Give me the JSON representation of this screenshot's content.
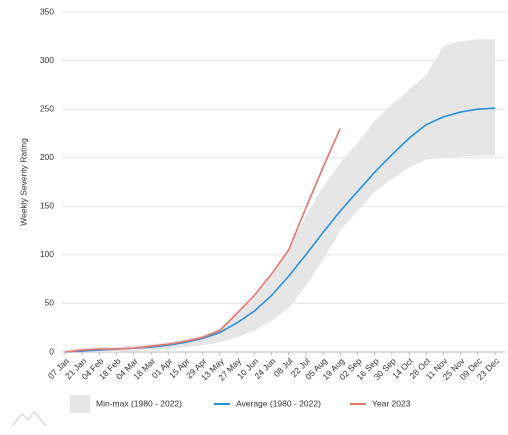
{
  "chart_data": {
    "type": "line",
    "ylabel": "Weekly Severity Rating",
    "categories": [
      "07 Jan",
      "21 Jan",
      "04 Feb",
      "18 Feb",
      "04 Mar",
      "18 Mar",
      "01 Apr",
      "15 Apr",
      "29 Apr",
      "13 May",
      "27 May",
      "10 Jun",
      "24 Jun",
      "08 Jul",
      "22 Jul",
      "05 Aug",
      "19 Aug",
      "02 Sep",
      "16 Sep",
      "30 Sep",
      "14 Oct",
      "28 Oct",
      "11 Nov",
      "25 Nov",
      "09 Dec",
      "23 Dec"
    ],
    "series": [
      {
        "name": "Min-max (1980 - 2022)",
        "color": "#e6e6e6",
        "kind": "band",
        "low": [
          0,
          0,
          0,
          0,
          1,
          2,
          3,
          5,
          7,
          10,
          15,
          22,
          32,
          45,
          68,
          95,
          125,
          145,
          165,
          178,
          190,
          198,
          200,
          201,
          202,
          202
        ],
        "high": [
          2,
          4,
          5,
          5,
          7,
          8,
          10,
          13,
          17,
          25,
          40,
          55,
          78,
          105,
          140,
          170,
          195,
          215,
          238,
          255,
          270,
          285,
          315,
          320,
          322,
          322
        ]
      },
      {
        "name": "Average (1980 - 2022)",
        "color": "#2b8fd8",
        "values": [
          0,
          1,
          2,
          3,
          4,
          5,
          7,
          10,
          14,
          20,
          30,
          42,
          58,
          78,
          100,
          123,
          145,
          165,
          185,
          203,
          220,
          234,
          242,
          247,
          250,
          251
        ]
      },
      {
        "name": "Year 2023",
        "color": "#e8736c",
        "values": [
          0,
          2,
          3,
          3,
          4,
          6,
          8,
          11,
          15,
          22,
          40,
          58,
          80,
          105,
          148,
          190,
          230,
          null,
          null,
          null,
          null,
          null,
          null,
          null,
          null,
          null
        ]
      }
    ],
    "ylim": [
      0,
      350
    ],
    "yticks": [
      0,
      50,
      100,
      150,
      200,
      250,
      300,
      350
    ],
    "grid": true
  }
}
